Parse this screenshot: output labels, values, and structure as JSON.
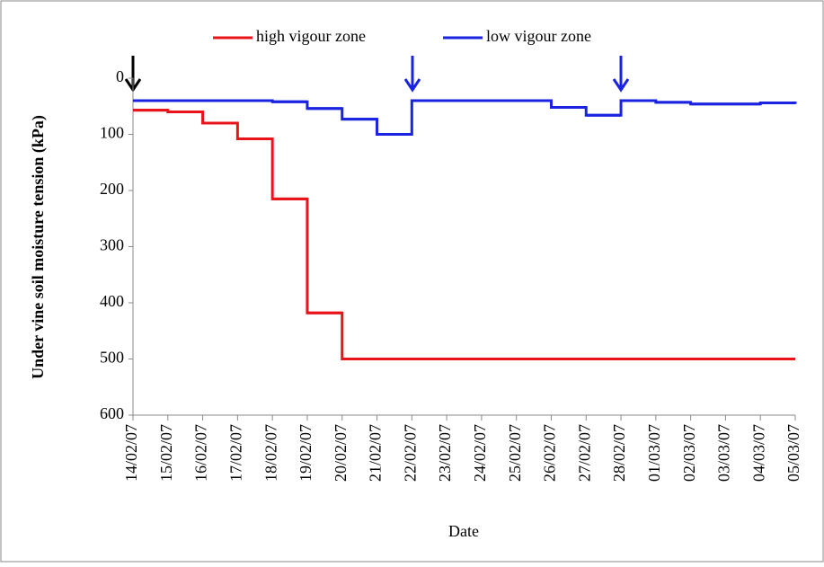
{
  "chart_data": {
    "type": "line",
    "drawstyle": "steps-post",
    "x_label": "Date",
    "y_label": "Under vine soil moisture tension (kPa)",
    "categories": [
      "14/02/07",
      "15/02/07",
      "16/02/07",
      "17/02/07",
      "18/02/07",
      "19/02/07",
      "20/02/07",
      "21/02/07",
      "22/02/07",
      "23/02/07",
      "24/02/07",
      "25/02/07",
      "26/02/07",
      "27/02/07",
      "28/02/07",
      "01/03/07",
      "02/03/07",
      "03/03/07",
      "04/03/07",
      "05/03/07"
    ],
    "series": [
      {
        "name": "high vigour zone",
        "color": "#e8141a",
        "values": [
          57,
          60,
          80,
          108,
          215,
          418,
          500,
          500,
          500,
          500,
          500,
          500,
          500,
          500,
          500,
          500,
          500,
          500,
          500,
          500
        ]
      },
      {
        "name": "low vigour zone",
        "color": "#1a23e0",
        "values": [
          40,
          40,
          40,
          40,
          42,
          54,
          73,
          100,
          40,
          40,
          40,
          40,
          52,
          66,
          40,
          43,
          46,
          46,
          44,
          46
        ]
      }
    ],
    "ylim": [
      0,
      600
    ],
    "y_inverted": true,
    "yticks": [
      0,
      100,
      200,
      300,
      400,
      500,
      600
    ],
    "legend": "top"
  }
}
